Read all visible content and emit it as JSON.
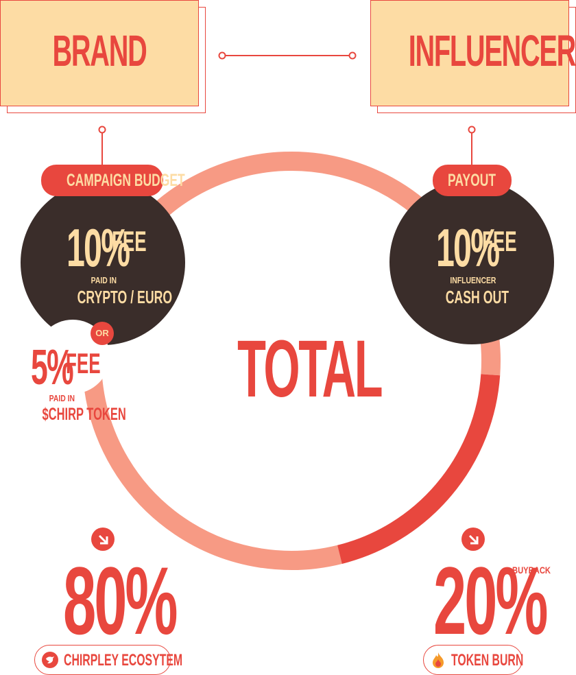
{
  "brand": {
    "label": "BRAND"
  },
  "influencer": {
    "label": "INFLUENCER"
  },
  "left_tag": {
    "label": "CAMPAIGN BUDGET"
  },
  "right_tag": {
    "label": "PAYOUT"
  },
  "left_fee": {
    "pct": "10%",
    "suffix": "FEE",
    "line1": "PAID IN",
    "line2": "CRYPTO / EURO"
  },
  "or_badge": {
    "label": "OR"
  },
  "alt_fee": {
    "pct": "5%",
    "suffix": "FEE",
    "line1": "PAID IN",
    "line2": "$CHIRP TOKEN"
  },
  "right_fee": {
    "pct": "10%",
    "suffix": "FEE",
    "line1": "INFLUENCER",
    "line2": "CASH OUT"
  },
  "center": {
    "label": "TOTAL"
  },
  "ecosystem": {
    "pct": "80%",
    "label": "CHIRPLEY ECOSYTEM",
    "icon": "bird-icon"
  },
  "burn": {
    "pct": "20%",
    "superscript": "BUYBACK",
    "label": "TOKEN BURN",
    "icon": "flame-icon"
  },
  "chart_data": {
    "type": "pie",
    "categories": [
      "CHIRPLEY ECOSYTEM",
      "TOKEN BURN"
    ],
    "values": [
      80,
      20
    ],
    "title": "TOTAL",
    "colors": {
      "ecosystem": "#f79a84",
      "burn": "#e8473e"
    }
  },
  "colors": {
    "accent": "#e8473e",
    "cream": "#fddca4",
    "dark": "#3a2d2a",
    "salmon": "#f79a84"
  }
}
